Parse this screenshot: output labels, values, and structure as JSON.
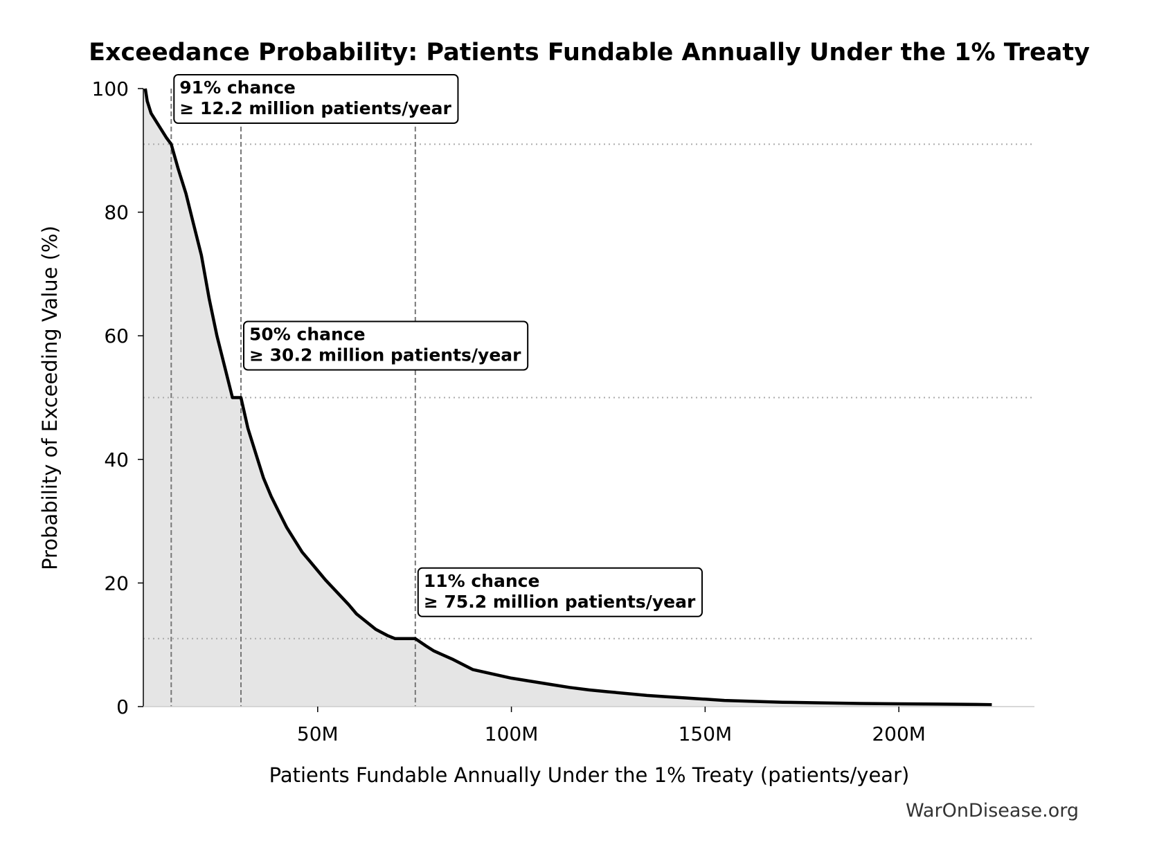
{
  "chart_data": {
    "type": "area",
    "title": "Exceedance Probability: Patients Fundable Annually Under the 1% Treaty",
    "xlabel": "Patients Fundable Annually Under the 1% Treaty (patients/year)",
    "ylabel": "Probability of Exceeding Value (%)",
    "xlim": [
      5,
      235
    ],
    "ylim": [
      0,
      100
    ],
    "x_unit": "million patients/year",
    "x_ticks": [
      {
        "value": 50,
        "label": "50M"
      },
      {
        "value": 100,
        "label": "100M"
      },
      {
        "value": 150,
        "label": "150M"
      },
      {
        "value": 200,
        "label": "200M"
      }
    ],
    "y_ticks": [
      {
        "value": 0,
        "label": "0"
      },
      {
        "value": 20,
        "label": "20"
      },
      {
        "value": 40,
        "label": "40"
      },
      {
        "value": 60,
        "label": "60"
      },
      {
        "value": 80,
        "label": "80"
      },
      {
        "value": 100,
        "label": "100"
      }
    ],
    "series": [
      {
        "x": [
          5.5,
          6,
          7,
          9,
          11,
          12.2,
          14,
          16,
          18,
          20,
          22,
          24,
          26,
          28,
          30.2,
          32,
          34,
          36,
          38,
          40,
          42,
          44,
          46,
          48,
          50,
          52,
          55,
          58,
          60,
          62,
          65,
          68,
          70,
          72,
          75.2,
          78,
          80,
          85,
          90,
          95,
          100,
          105,
          110,
          115,
          120,
          125,
          130,
          135,
          140,
          145,
          150,
          155,
          160,
          165,
          170,
          180,
          190,
          200,
          210,
          220,
          224
        ],
        "y": [
          100,
          98,
          96,
          94,
          92,
          91,
          87,
          83,
          78,
          73,
          66,
          60,
          55,
          50,
          50,
          45,
          41,
          37,
          34,
          31.5,
          29,
          27,
          25,
          23.5,
          22,
          20.5,
          18.5,
          16.5,
          15,
          14,
          12.5,
          11.5,
          11,
          11,
          11,
          9.8,
          9,
          7.6,
          6,
          5.3,
          4.6,
          4.1,
          3.6,
          3.1,
          2.7,
          2.4,
          2.1,
          1.8,
          1.6,
          1.4,
          1.2,
          1.0,
          0.9,
          0.8,
          0.7,
          0.6,
          0.5,
          0.45,
          0.4,
          0.35,
          0.3
        ]
      }
    ],
    "fill": "#e5e5e5",
    "line_color": "#000000",
    "reference_lines": [
      {
        "x": 12.2,
        "y": 91
      },
      {
        "x": 30.2,
        "y": 50
      },
      {
        "x": 75.2,
        "y": 11
      }
    ],
    "annotations": [
      {
        "line1": "91% chance",
        "line2": "≥ 12.2 million patients/year",
        "x": 12.2,
        "y": 91
      },
      {
        "line1": "50% chance",
        "line2": "≥ 30.2 million patients/year",
        "x": 30.2,
        "y": 50
      },
      {
        "line1": "11% chance",
        "line2": "≥ 75.2 million patients/year",
        "x": 75.2,
        "y": 11
      }
    ]
  },
  "watermark": "WarOnDisease.org"
}
